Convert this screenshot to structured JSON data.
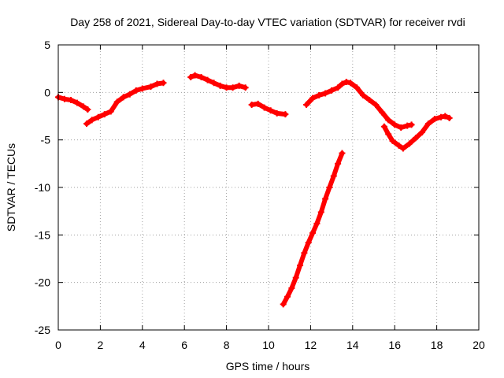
{
  "chart_data": {
    "type": "scatter",
    "title": "Day 258 of 2021, Sidereal Day-to-day VTEC variation (SDTVAR) for receiver rvdi",
    "xlabel": "GPS time / hours",
    "ylabel": "SDTVAR / TECUs",
    "xlim": [
      0,
      20
    ],
    "ylim": [
      -25,
      5
    ],
    "xticks": [
      0,
      2,
      4,
      6,
      8,
      10,
      12,
      14,
      16,
      18,
      20
    ],
    "yticks": [
      -25,
      -20,
      -15,
      -10,
      -5,
      0,
      5
    ],
    "grid": true,
    "legend": "none",
    "series": [
      {
        "name": "rvdi SDTVAR",
        "color": "#ff0000",
        "segments": [
          [
            [
              0.0,
              -0.5
            ],
            [
              0.3,
              -0.7
            ],
            [
              0.6,
              -0.8
            ],
            [
              0.9,
              -1.1
            ],
            [
              1.2,
              -1.5
            ],
            [
              1.4,
              -1.8
            ]
          ],
          [
            [
              1.35,
              -3.3
            ],
            [
              1.6,
              -2.9
            ],
            [
              1.9,
              -2.6
            ],
            [
              2.2,
              -2.3
            ],
            [
              2.5,
              -2.0
            ],
            [
              2.8,
              -1.0
            ],
            [
              3.1,
              -0.5
            ],
            [
              3.4,
              -0.2
            ],
            [
              3.7,
              0.2
            ],
            [
              4.0,
              0.4
            ],
            [
              4.4,
              0.6
            ],
            [
              4.7,
              0.9
            ],
            [
              5.0,
              1.0
            ]
          ],
          [
            [
              6.3,
              1.6
            ],
            [
              6.5,
              1.8
            ],
            [
              6.8,
              1.6
            ],
            [
              7.1,
              1.3
            ],
            [
              7.4,
              1.0
            ],
            [
              7.7,
              0.7
            ],
            [
              8.0,
              0.5
            ],
            [
              8.3,
              0.5
            ],
            [
              8.6,
              0.7
            ],
            [
              8.9,
              0.5
            ]
          ],
          [
            [
              9.2,
              -1.3
            ],
            [
              9.5,
              -1.2
            ],
            [
              9.8,
              -1.6
            ],
            [
              10.1,
              -1.9
            ],
            [
              10.4,
              -2.2
            ],
            [
              10.8,
              -2.3
            ]
          ],
          [
            [
              10.7,
              -22.3
            ],
            [
              10.9,
              -21.5
            ],
            [
              11.1,
              -20.6
            ],
            [
              11.3,
              -19.5
            ],
            [
              11.5,
              -18.2
            ],
            [
              11.7,
              -16.9
            ],
            [
              11.9,
              -15.8
            ],
            [
              12.1,
              -14.8
            ],
            [
              12.3,
              -13.8
            ],
            [
              12.5,
              -12.6
            ],
            [
              12.7,
              -11.2
            ],
            [
              12.9,
              -10.0
            ],
            [
              13.1,
              -8.8
            ],
            [
              13.3,
              -7.5
            ],
            [
              13.5,
              -6.4
            ]
          ],
          [
            [
              11.8,
              -1.3
            ],
            [
              12.1,
              -0.6
            ],
            [
              12.4,
              -0.3
            ],
            [
              12.7,
              -0.1
            ],
            [
              13.0,
              0.2
            ],
            [
              13.3,
              0.5
            ],
            [
              13.5,
              0.9
            ],
            [
              13.7,
              1.1
            ],
            [
              13.9,
              1.0
            ],
            [
              14.2,
              0.5
            ],
            [
              14.5,
              -0.3
            ],
            [
              14.8,
              -0.8
            ],
            [
              15.1,
              -1.3
            ],
            [
              15.4,
              -2.1
            ],
            [
              15.7,
              -2.9
            ],
            [
              16.0,
              -3.4
            ],
            [
              16.3,
              -3.7
            ],
            [
              16.6,
              -3.5
            ],
            [
              16.8,
              -3.4
            ]
          ],
          [
            [
              15.5,
              -3.6
            ],
            [
              15.7,
              -4.4
            ],
            [
              15.9,
              -5.1
            ],
            [
              16.2,
              -5.6
            ],
            [
              16.4,
              -5.9
            ],
            [
              16.7,
              -5.4
            ],
            [
              17.0,
              -4.8
            ],
            [
              17.3,
              -4.2
            ],
            [
              17.6,
              -3.3
            ],
            [
              17.9,
              -2.8
            ],
            [
              18.2,
              -2.6
            ],
            [
              18.4,
              -2.5
            ],
            [
              18.6,
              -2.7
            ]
          ]
        ]
      }
    ]
  }
}
